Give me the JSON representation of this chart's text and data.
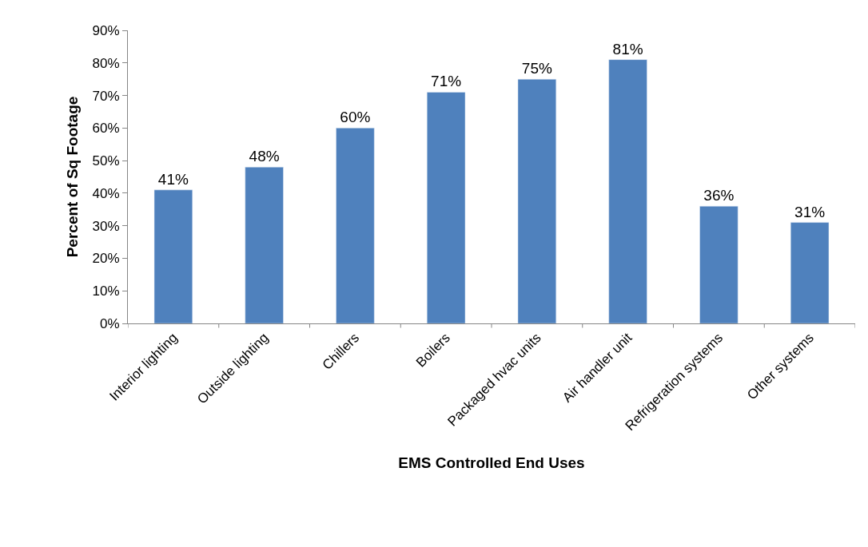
{
  "chart_data": {
    "type": "bar",
    "xlabel": "EMS Controlled End Uses",
    "ylabel": "Percent of Sq Footage",
    "categories": [
      "Interior lighting",
      "Outside lighting",
      "Chillers",
      "Boilers",
      "Packaged hvac units",
      "Air handler unit",
      "Refrigeration systems",
      "Other systems"
    ],
    "values": [
      41,
      48,
      60,
      71,
      75,
      81,
      36,
      31
    ],
    "value_labels": [
      "41%",
      "48%",
      "60%",
      "71%",
      "75%",
      "81%",
      "36%",
      "31%"
    ],
    "color": "#4f81bd",
    "ylim": [
      0,
      90
    ],
    "yticks": [
      {
        "value": 0,
        "label": "0%"
      },
      {
        "value": 10,
        "label": "10%"
      },
      {
        "value": 20,
        "label": "20%"
      },
      {
        "value": 30,
        "label": "30%"
      },
      {
        "value": 40,
        "label": "40%"
      },
      {
        "value": 50,
        "label": "50%"
      },
      {
        "value": 60,
        "label": "60%"
      },
      {
        "value": 70,
        "label": "70%"
      },
      {
        "value": 80,
        "label": "80%"
      },
      {
        "value": 90,
        "label": "90%"
      }
    ],
    "legend": false
  }
}
